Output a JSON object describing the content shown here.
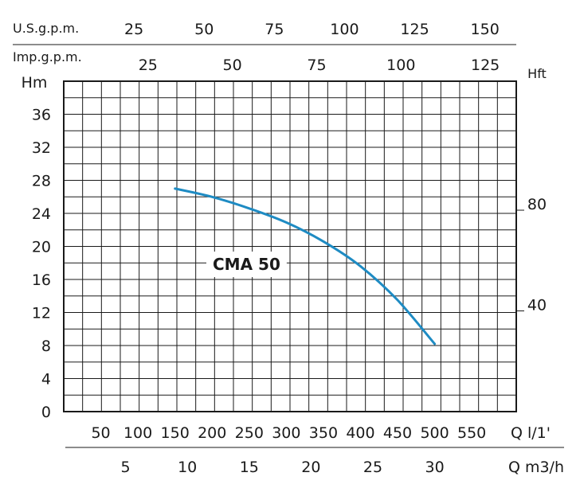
{
  "chart_data": {
    "type": "line",
    "title": "",
    "series": [
      {
        "name": "CMA 50",
        "color": "#1e8bc3",
        "x": [
          150,
          200,
          250,
          300,
          350,
          400,
          450,
          500
        ],
        "y": [
          27.0,
          26.0,
          24.6,
          22.9,
          20.6,
          17.6,
          13.5,
          8.2
        ]
      }
    ],
    "x_axis": {
      "label": "Q l/1'",
      "range": [
        0,
        610
      ],
      "ticks": [
        50,
        100,
        150,
        200,
        250,
        300,
        350,
        400,
        450,
        500,
        550
      ]
    },
    "y_axis": {
      "label": "Hm",
      "range": [
        0,
        40
      ],
      "ticks": [
        0,
        4,
        8,
        12,
        16,
        20,
        24,
        28,
        32,
        36
      ]
    },
    "secondary_x_axes": [
      {
        "label": "U.S.g.p.m.",
        "position": "top",
        "ticks": [
          25,
          50,
          75,
          100,
          125,
          150
        ],
        "liters_per_unit": 3.785
      },
      {
        "label": "Imp.g.p.m.",
        "position": "top",
        "ticks": [
          25,
          50,
          75,
          100,
          125
        ],
        "liters_per_unit": 4.546
      },
      {
        "label": "Q m3/h",
        "position": "bottom",
        "ticks": [
          5,
          10,
          15,
          20,
          25,
          30
        ],
        "liters_per_unit": 16.667
      }
    ],
    "secondary_y_axis": {
      "label": "Hft",
      "position": "right",
      "ticks": [
        40,
        80
      ],
      "meters_per_unit": 0.3048
    },
    "grid": true,
    "legend": "none"
  }
}
